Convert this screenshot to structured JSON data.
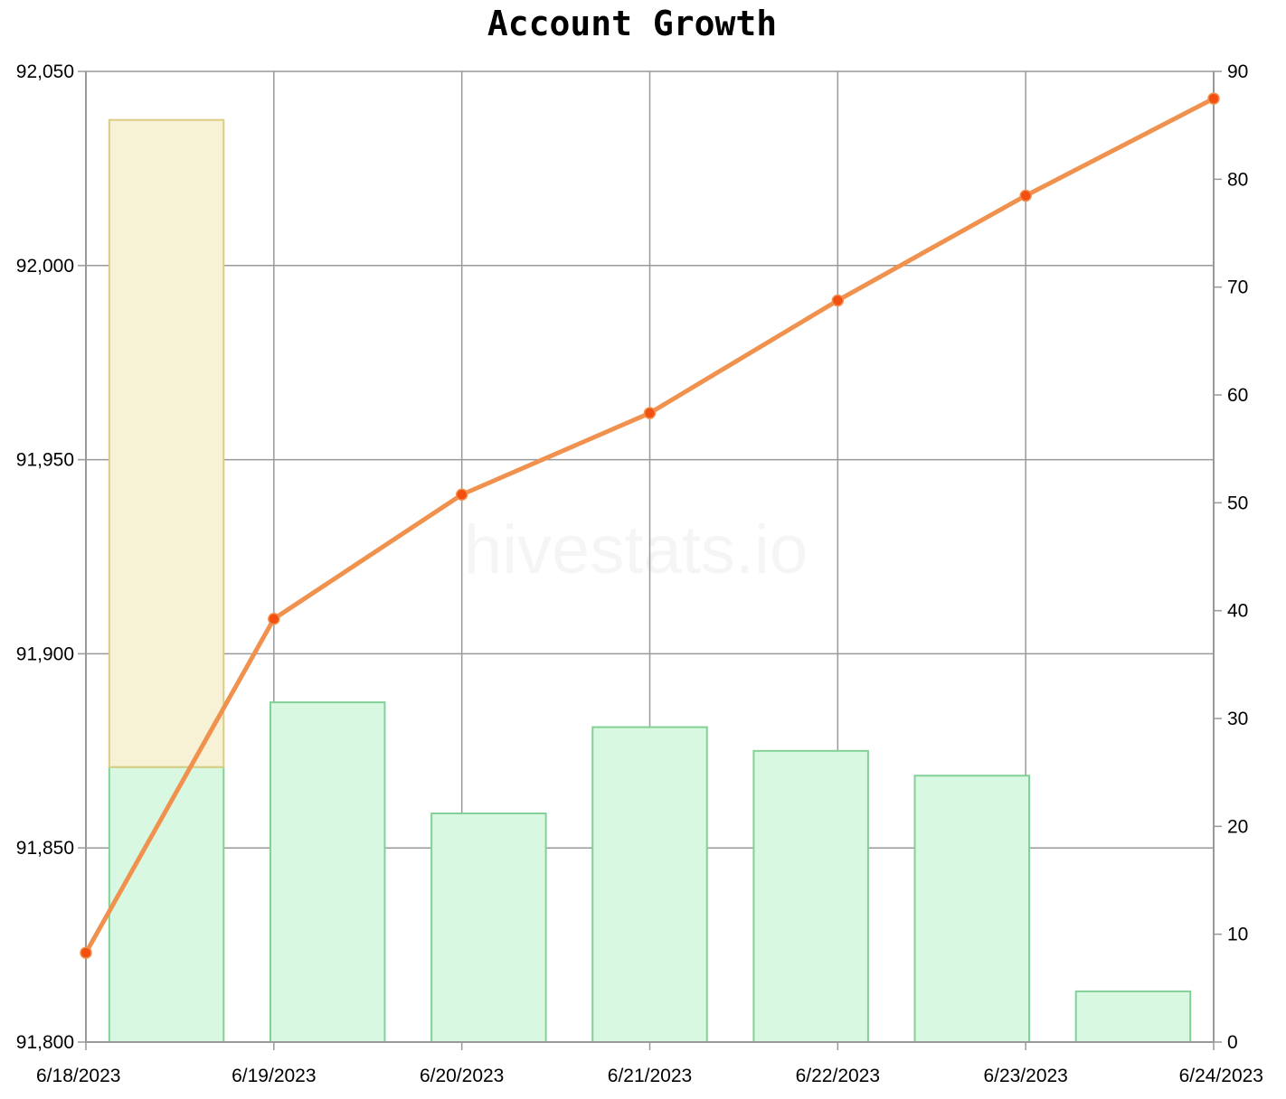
{
  "title": "Account Growth",
  "watermark": "hivestats.io",
  "colors": {
    "line": "#f0924e",
    "point": "#f24f12",
    "bar_green_fill": "#d8f8e2",
    "bar_green_stroke": "#82d197",
    "bar_yellow_fill": "#f7f1d6",
    "bar_yellow_stroke": "#dacd83",
    "grid": "#999999"
  },
  "chart_data": {
    "type": "bar+line",
    "categories": [
      "6/18/2023",
      "6/19/2023",
      "6/20/2023",
      "6/21/2023",
      "6/22/2023",
      "6/23/2023",
      "6/24/2023"
    ],
    "left_axis": {
      "ylim": [
        91800,
        92050
      ],
      "ticks": [
        "91,800",
        "91,850",
        "91,900",
        "91,950",
        "92,000",
        "92,050"
      ]
    },
    "right_axis": {
      "ylim": [
        0,
        90
      ],
      "ticks": [
        "0",
        "10",
        "20",
        "30",
        "40",
        "50",
        "60",
        "70",
        "80",
        "90"
      ]
    },
    "line_series": {
      "axis": "left",
      "values": [
        91823,
        91909,
        91941,
        91962,
        91991,
        92018,
        92043
      ]
    },
    "bar_series": [
      {
        "axis": "right",
        "color": "green",
        "values": [
          25.5,
          31.5,
          21.2,
          29.2,
          27,
          24.7,
          4.7
        ]
      },
      {
        "axis": "right",
        "color": "yellow",
        "stacked": true,
        "values": [
          60,
          0,
          0,
          0,
          0,
          0,
          0
        ]
      }
    ],
    "grid": true,
    "legend": "none"
  }
}
